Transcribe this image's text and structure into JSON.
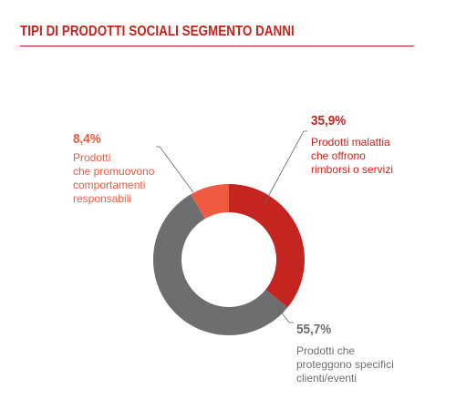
{
  "title": "TIPI DI PRODOTTI SOCIALI SEGMENTO DANNI",
  "colors": {
    "title": "#c8201c",
    "rule": "#c8201c",
    "leader": "#666666"
  },
  "chart_data": {
    "type": "pie",
    "title": "TIPI DI PRODOTTI SOCIALI SEGMENTO DANNI",
    "donut": true,
    "unit": "%",
    "slices": [
      {
        "label": "Prodotti malattia che offrono rimborsi o servizi",
        "value": 35.9,
        "value_label": "35,9%",
        "color": "#c52520"
      },
      {
        "label": "Prodotti che proteggono specifici clienti/eventi",
        "value": 55.7,
        "value_label": "55,7%",
        "color": "#6d6e70"
      },
      {
        "label": "Prodotti che promuovono comportamenti responsabili",
        "value": 8.4,
        "value_label": "8,4%",
        "color": "#ef5a40"
      }
    ],
    "legend": "none"
  },
  "annotations": [
    {
      "pct": "35,9%",
      "text": "Prodotti malattia\nche offrono\nrimborsi o servizi",
      "color": "#c52520"
    },
    {
      "pct": "55,7%",
      "text": "Prodotti che\nproteggono specifici\nclienti/eventi",
      "color": "#6d6e70"
    },
    {
      "pct": "8,4%",
      "text": "Prodotti\nche promuovono\ncomportamenti\nresponsabili",
      "color": "#ef5a40"
    }
  ]
}
